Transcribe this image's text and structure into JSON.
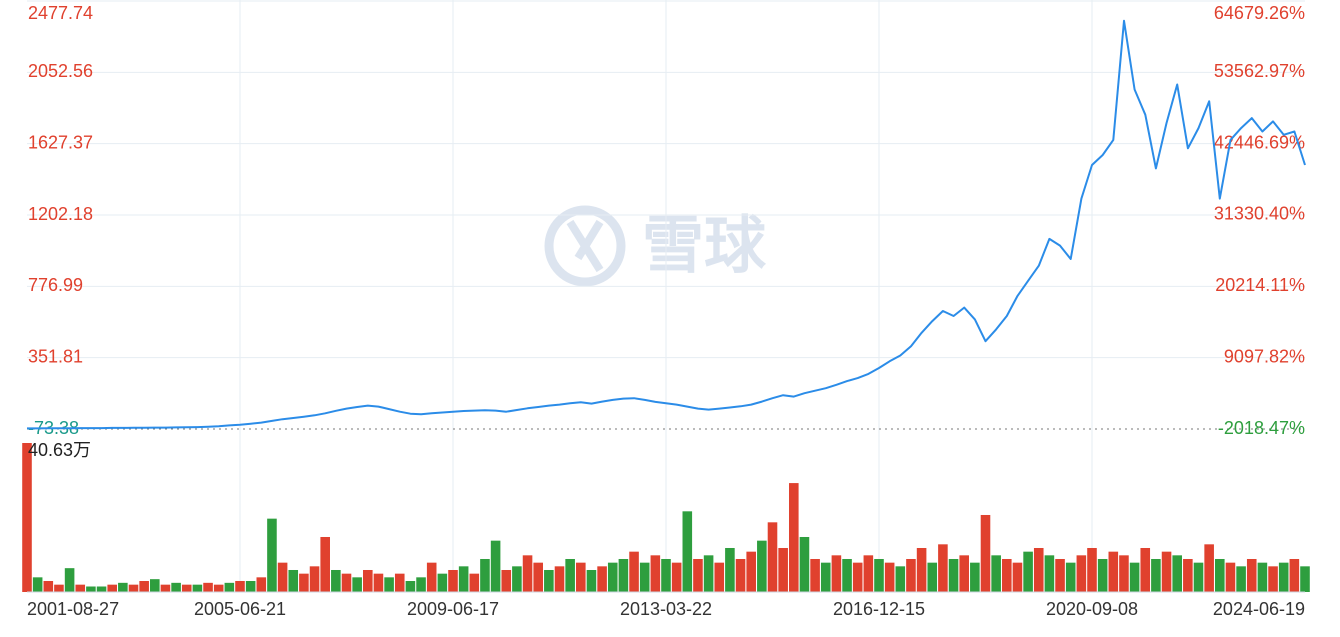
{
  "chart_data": {
    "type": "line",
    "watermark": "雪球",
    "categories": [
      "2001-08-27",
      null,
      null,
      null,
      null,
      null,
      null,
      null,
      null,
      null,
      null,
      null,
      null,
      null,
      null,
      null,
      null,
      null,
      null,
      null,
      "2005-06-21",
      null,
      null,
      null,
      null,
      null,
      null,
      null,
      null,
      null,
      null,
      null,
      null,
      null,
      null,
      null,
      null,
      null,
      null,
      null,
      "2009-06-17",
      null,
      null,
      null,
      null,
      null,
      null,
      null,
      null,
      null,
      null,
      null,
      null,
      null,
      null,
      null,
      null,
      null,
      null,
      null,
      "2013-03-22",
      null,
      null,
      null,
      null,
      null,
      null,
      null,
      null,
      null,
      null,
      null,
      null,
      null,
      null,
      null,
      null,
      null,
      null,
      null,
      "2016-12-15",
      null,
      null,
      null,
      null,
      null,
      null,
      null,
      null,
      null,
      null,
      null,
      null,
      null,
      null,
      null,
      null,
      null,
      null,
      null,
      "2020-09-08",
      null,
      null,
      null,
      null,
      null,
      null,
      null,
      null,
      null,
      null,
      null,
      null,
      null,
      null,
      null,
      null,
      null,
      null,
      null,
      "2024-06-19"
    ],
    "series": [
      {
        "color": "#2b8ce8",
        "values": [
          -70,
          -70,
          -69,
          -69,
          -69,
          -68,
          -68,
          -68,
          -67,
          -67,
          -66,
          -66,
          -65,
          -65,
          -64,
          -63,
          -62,
          -60,
          -57,
          -52,
          -48,
          -42,
          -35,
          -25,
          -15,
          -8,
          0,
          8,
          20,
          35,
          48,
          58,
          66,
          60,
          45,
          30,
          18,
          14,
          20,
          25,
          30,
          34,
          36,
          38,
          36,
          30,
          40,
          50,
          58,
          66,
          72,
          80,
          86,
          78,
          90,
          100,
          108,
          110,
          100,
          88,
          80,
          72,
          60,
          48,
          42,
          48,
          55,
          62,
          72,
          90,
          110,
          128,
          120,
          140,
          155,
          170,
          190,
          212,
          230,
          255,
          290,
          330,
          365,
          420,
          500,
          570,
          630,
          600,
          650,
          580,
          450,
          520,
          600,
          720,
          810,
          900,
          1060,
          1020,
          940,
          1300,
          1500,
          1560,
          1650,
          2360,
          1950,
          1800,
          1480,
          1750,
          1980,
          1600,
          1720,
          1880,
          1300,
          1650,
          1720,
          1780,
          1700,
          1760,
          1680,
          1700,
          1500
        ]
      }
    ],
    "ylim": [
      -73.38,
      2477.74
    ],
    "yticks": [
      -73.38,
      351.81,
      776.99,
      1202.18,
      1627.37,
      2052.56,
      2477.74
    ],
    "y2lim": [
      -2018.47,
      64679.26
    ],
    "y2ticks": [
      {
        "value": -2018.47,
        "label": "-2018.47%"
      },
      {
        "value": 9097.82,
        "label": "9097.82%"
      },
      {
        "value": 20214.11,
        "label": "20214.11%"
      },
      {
        "value": 31330.4,
        "label": "31330.40%"
      },
      {
        "value": 42446.69,
        "label": "42446.69%"
      },
      {
        "value": 53562.97,
        "label": "53562.97%"
      },
      {
        "value": 64679.26,
        "label": "64679.26%"
      }
    ],
    "grid": true,
    "volume": {
      "ylim": [
        0,
        40.63
      ],
      "yticks": [
        {
          "value": 40.63,
          "label": "40.63万"
        }
      ],
      "values": [
        40.63,
        4,
        3,
        2,
        6.5,
        2,
        1.5,
        1.5,
        2,
        2.5,
        2,
        3,
        3.5,
        2,
        2.5,
        2,
        2,
        2.5,
        2,
        2.5,
        3,
        3,
        4,
        20,
        8,
        6,
        5,
        7,
        15,
        6,
        5,
        4,
        6,
        5,
        4,
        5,
        3,
        4,
        8,
        5,
        6,
        7,
        5,
        9,
        14,
        6,
        7,
        10,
        8,
        6,
        7,
        9,
        8,
        6,
        7,
        8,
        9,
        11,
        8,
        10,
        9,
        8,
        22,
        9,
        10,
        8,
        12,
        9,
        11,
        14,
        19,
        12,
        29.7,
        15,
        9,
        8,
        10,
        9,
        8,
        10,
        9,
        8,
        7,
        9,
        12,
        8,
        13,
        9,
        10,
        8,
        21,
        10,
        9,
        8,
        11,
        12,
        10,
        9,
        8,
        10,
        12,
        9,
        11,
        10,
        8,
        12,
        9,
        11,
        10,
        9,
        8,
        13,
        9,
        8,
        7,
        9,
        8,
        7,
        8,
        9,
        7
      ],
      "colors": [
        "#e0412e",
        "#2e9e3e",
        "#e0412e",
        "#e0412e",
        "#2e9e3e",
        "#e0412e",
        "#2e9e3e",
        "#2e9e3e",
        "#e0412e",
        "#2e9e3e",
        "#e0412e",
        "#e0412e",
        "#2e9e3e",
        "#e0412e",
        "#2e9e3e",
        "#e0412e",
        "#2e9e3e",
        "#e0412e",
        "#e0412e",
        "#2e9e3e",
        "#e0412e",
        "#2e9e3e",
        "#e0412e",
        "#2e9e3e",
        "#e0412e",
        "#2e9e3e",
        "#e0412e",
        "#e0412e",
        "#e0412e",
        "#2e9e3e",
        "#e0412e",
        "#2e9e3e",
        "#e0412e",
        "#e0412e",
        "#2e9e3e",
        "#e0412e",
        "#2e9e3e",
        "#2e9e3e",
        "#e0412e",
        "#2e9e3e",
        "#e0412e",
        "#2e9e3e",
        "#e0412e",
        "#2e9e3e",
        "#2e9e3e",
        "#e0412e",
        "#2e9e3e",
        "#e0412e",
        "#e0412e",
        "#2e9e3e",
        "#e0412e",
        "#2e9e3e",
        "#e0412e",
        "#2e9e3e",
        "#e0412e",
        "#2e9e3e",
        "#2e9e3e",
        "#e0412e",
        "#2e9e3e",
        "#e0412e",
        "#2e9e3e",
        "#e0412e",
        "#2e9e3e",
        "#e0412e",
        "#2e9e3e",
        "#e0412e",
        "#2e9e3e",
        "#e0412e",
        "#e0412e",
        "#2e9e3e",
        "#e0412e",
        "#e0412e",
        "#e0412e",
        "#2e9e3e",
        "#e0412e",
        "#2e9e3e",
        "#e0412e",
        "#2e9e3e",
        "#e0412e",
        "#e0412e",
        "#2e9e3e",
        "#e0412e",
        "#2e9e3e",
        "#e0412e",
        "#e0412e",
        "#2e9e3e",
        "#e0412e",
        "#2e9e3e",
        "#e0412e",
        "#2e9e3e",
        "#e0412e",
        "#2e9e3e",
        "#e0412e",
        "#e0412e",
        "#2e9e3e",
        "#e0412e",
        "#2e9e3e",
        "#e0412e",
        "#2e9e3e",
        "#e0412e",
        "#e0412e",
        "#2e9e3e",
        "#e0412e",
        "#e0412e",
        "#2e9e3e",
        "#e0412e",
        "#2e9e3e",
        "#e0412e",
        "#2e9e3e",
        "#e0412e",
        "#2e9e3e",
        "#e0412e",
        "#2e9e3e",
        "#e0412e",
        "#2e9e3e",
        "#e0412e",
        "#2e9e3e",
        "#e0412e",
        "#2e9e3e",
        "#e0412e",
        "#2e9e3e"
      ]
    }
  }
}
